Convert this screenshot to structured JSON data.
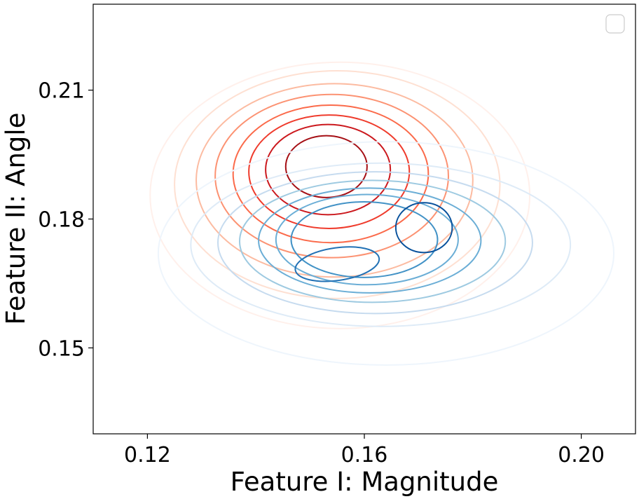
{
  "chart_data": {
    "type": "contour",
    "title": "",
    "xlabel": "Feature I: Magnitude",
    "ylabel": "Feature II: Angle",
    "xlim": [
      0.11,
      0.21
    ],
    "ylim": [
      0.13,
      0.23
    ],
    "xticks": [
      0.12,
      0.16,
      0.2
    ],
    "xtick_labels": [
      "0.12",
      "0.16",
      "0.20"
    ],
    "yticks": [
      0.15,
      0.18,
      0.21
    ],
    "ytick_labels": [
      "0.15",
      "0.18",
      "0.21"
    ],
    "grid": false,
    "legend": {
      "placement": "top-right",
      "entries": []
    },
    "colors": {
      "red_scale": [
        "#fff0eb",
        "#fee0d2",
        "#fcbba1",
        "#fc9272",
        "#fb6a4a",
        "#ef3b2c",
        "#cb181d",
        "#a50f15"
      ],
      "blue_scale": [
        "#eef5fc",
        "#deebf7",
        "#c6dbef",
        "#9ecae1",
        "#6baed6",
        "#4292c6",
        "#2171b5",
        "#08519c"
      ]
    },
    "series": [
      {
        "cmap": "Reds",
        "levels": [
          {
            "cx": 0.1555,
            "cy": 0.1855,
            "rx": 0.035,
            "ry": 0.031,
            "tilt": 0
          },
          {
            "cx": 0.155,
            "cy": 0.188,
            "rx": 0.03,
            "ry": 0.0265,
            "tilt": 0
          },
          {
            "cx": 0.1545,
            "cy": 0.189,
            "rx": 0.0255,
            "ry": 0.0225,
            "tilt": 0
          },
          {
            "cx": 0.154,
            "cy": 0.19,
            "rx": 0.0215,
            "ry": 0.019,
            "tilt": 0
          },
          {
            "cx": 0.1538,
            "cy": 0.1905,
            "rx": 0.018,
            "ry": 0.016,
            "tilt": 0
          },
          {
            "cx": 0.1535,
            "cy": 0.191,
            "rx": 0.0148,
            "ry": 0.0132,
            "tilt": 0
          },
          {
            "cx": 0.1533,
            "cy": 0.1915,
            "rx": 0.0115,
            "ry": 0.0105,
            "tilt": 0
          },
          {
            "cx": 0.153,
            "cy": 0.1922,
            "rx": 0.0075,
            "ry": 0.0072,
            "tilt": 0
          }
        ]
      },
      {
        "cmap": "Blues",
        "levels": [
          {
            "cx": 0.164,
            "cy": 0.172,
            "rx": 0.042,
            "ry": 0.026,
            "tilt": 0
          },
          {
            "cx": 0.163,
            "cy": 0.174,
            "rx": 0.035,
            "ry": 0.019,
            "tilt": 0
          },
          {
            "cx": 0.162,
            "cy": 0.1745,
            "rx": 0.029,
            "ry": 0.0165,
            "tilt": 0
          },
          {
            "cx": 0.1615,
            "cy": 0.1748,
            "rx": 0.0245,
            "ry": 0.0142,
            "tilt": 0
          },
          {
            "cx": 0.161,
            "cy": 0.175,
            "rx": 0.0205,
            "ry": 0.0122,
            "tilt": 0
          },
          {
            "cx": 0.1605,
            "cy": 0.1752,
            "rx": 0.0168,
            "ry": 0.0105,
            "tilt": 0
          },
          {
            "cx": 0.16,
            "cy": 0.1752,
            "rx": 0.0135,
            "ry": 0.0088,
            "tilt": 0
          },
          {
            "cx": 0.155,
            "cy": 0.1695,
            "rx": 0.0078,
            "ry": 0.0038,
            "tilt": -8
          },
          {
            "cx": 0.171,
            "cy": 0.178,
            "rx": 0.0052,
            "ry": 0.0058,
            "tilt": 0
          }
        ]
      }
    ]
  }
}
